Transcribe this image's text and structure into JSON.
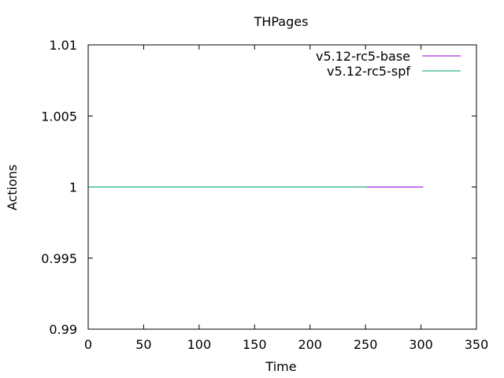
{
  "chart_data": {
    "type": "line",
    "title": "THPages",
    "xlabel": "Time",
    "ylabel": "Actions",
    "xlim": [
      0,
      350
    ],
    "ylim": [
      0.99,
      1.01
    ],
    "xticks": [
      0,
      50,
      100,
      150,
      200,
      250,
      300,
      350
    ],
    "xtick_labels": [
      "0",
      "50",
      "100",
      "150",
      "200",
      "250",
      "300",
      "350"
    ],
    "yticks": [
      0.99,
      0.995,
      1,
      1.005,
      1.01
    ],
    "ytick_labels": [
      "0.99",
      "0.995",
      "1",
      "1.005",
      "1.01"
    ],
    "grid": false,
    "legend_position": "top-right",
    "series": [
      {
        "name": "v5.12-rc5-base",
        "color": "#9400d3",
        "x": [
          0,
          302
        ],
        "y": [
          1,
          1
        ]
      },
      {
        "name": "v5.12-rc5-spf",
        "color": "#009e73",
        "x": [
          0,
          251
        ],
        "y": [
          1,
          1
        ]
      }
    ]
  }
}
